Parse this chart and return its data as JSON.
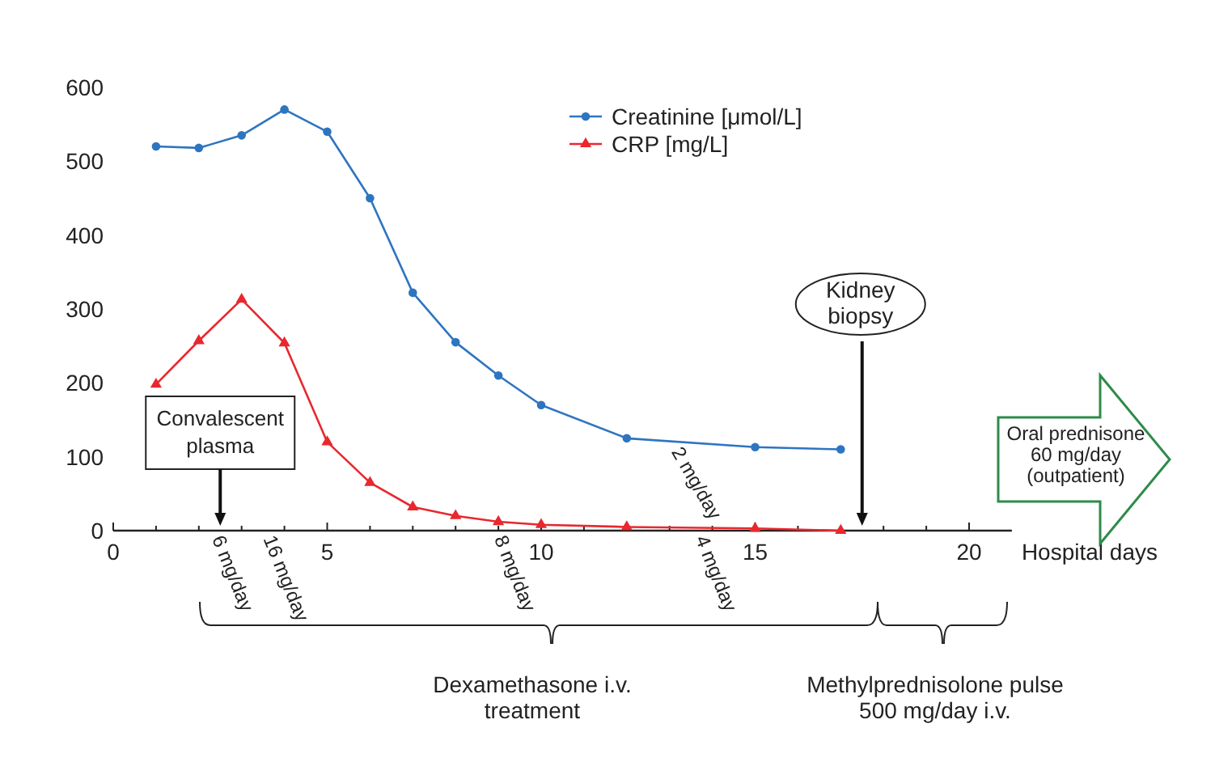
{
  "chart_data": {
    "type": "line",
    "xlabel": "Hospital days",
    "x": [
      1,
      2,
      3,
      4,
      5,
      6,
      7,
      8,
      9,
      10,
      12,
      15,
      17
    ],
    "series": [
      {
        "name": "Creatinine [μmol/L]",
        "color": "#2e75c0",
        "marker": "circle",
        "values": [
          520,
          518,
          535,
          570,
          540,
          450,
          322,
          255,
          210,
          170,
          125,
          113,
          110
        ]
      },
      {
        "name": "CRP [mg/L]",
        "color": "#e8282e",
        "marker": "triangle",
        "values": [
          198,
          257,
          313,
          254,
          120,
          65,
          32,
          20,
          12,
          8,
          5,
          3,
          0
        ]
      }
    ],
    "xlim": [
      0,
      21
    ],
    "xticks": [
      0,
      {
        "value": 1,
        "label": null
      },
      {
        "value": 2,
        "label": null
      },
      {
        "value": 3,
        "label": null
      },
      {
        "value": 4,
        "label": null
      },
      5,
      {
        "value": 6,
        "label": null
      },
      {
        "value": 7,
        "label": null
      },
      {
        "value": 8,
        "label": null
      },
      {
        "value": 9,
        "label": null
      },
      10,
      {
        "value": 11,
        "label": null
      },
      {
        "value": 12,
        "label": null
      },
      {
        "value": 13,
        "label": null
      },
      {
        "value": 14,
        "label": null
      },
      15,
      {
        "value": 16,
        "label": null
      },
      {
        "value": 17,
        "label": null
      },
      {
        "value": 18,
        "label": null
      },
      {
        "value": 19,
        "label": null
      },
      20
    ],
    "ylim": [
      0,
      600
    ],
    "yticks": [
      0,
      100,
      200,
      300,
      400,
      500,
      600
    ],
    "legend": "top",
    "grid": false,
    "annotations": [
      "Convalescent\nplasma",
      "Kidney\nbiopsy",
      "6 mg/day",
      "16 mg/day",
      "8 mg/day",
      "4 mg/day",
      "2 mg/day",
      "Dexamethasone i.v.\ntreatment",
      "Methylprednisolone pulse\n500 mg/day i.v.",
      "Oral prednisone\n60 mg/day\n(outpatient)"
    ]
  }
}
